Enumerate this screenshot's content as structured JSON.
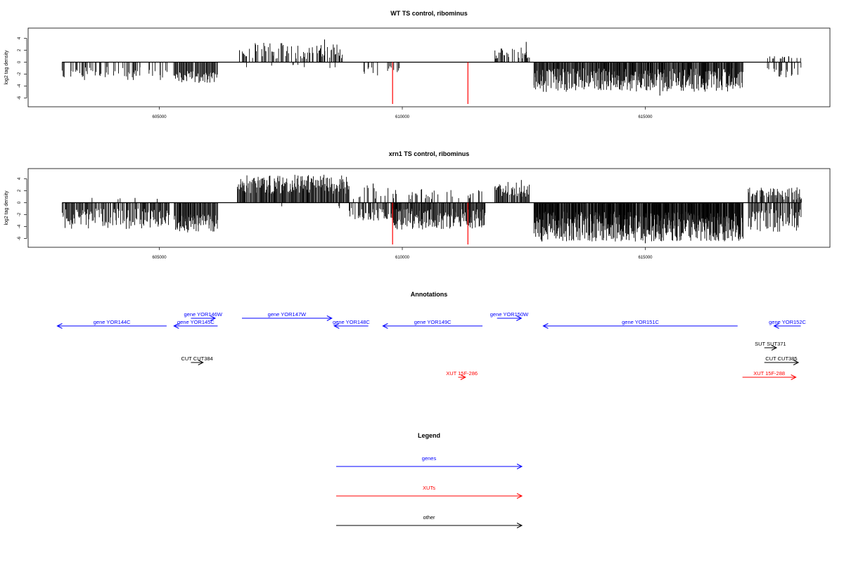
{
  "chart_data": [
    {
      "type": "bar",
      "title": "WT TS control, ribominus",
      "ylabel": "log2 tag density",
      "xlabel": "",
      "xlim": [
        602300,
        618800
      ],
      "ylim": [
        -7,
        5
      ],
      "yticks": [
        -6,
        -4,
        -2,
        0,
        2,
        4
      ],
      "xticks": [
        605000,
        610000,
        615000
      ],
      "xtick_labels": [
        "605000",
        "610000",
        "615000"
      ],
      "baseline": {
        "x": [
          603000,
          618200
        ],
        "y": 0
      },
      "bar_color": "#000000",
      "highlight_color": "#ff0000",
      "segments": [
        {
          "x0": 603000,
          "x1": 605200,
          "seed": 11,
          "pos_density": 0.0,
          "neg_density": 0.35,
          "pos_range": [
            0,
            0
          ],
          "neg_range": [
            0.8,
            3.0
          ]
        },
        {
          "x0": 605300,
          "x1": 606200,
          "seed": 12,
          "pos_density": 0.0,
          "neg_density": 0.9,
          "pos_range": [
            0,
            0
          ],
          "neg_range": [
            1.5,
            3.5
          ]
        },
        {
          "x0": 606700,
          "x1": 608800,
          "seed": 13,
          "pos_density": 0.55,
          "neg_density": 0.03,
          "pos_range": [
            0.5,
            3.3
          ],
          "neg_range": [
            0.3,
            1.0
          ]
        },
        {
          "x0": 609200,
          "x1": 609600,
          "seed": 14,
          "pos_density": 0.0,
          "neg_density": 0.3,
          "pos_range": [
            0,
            0
          ],
          "neg_range": [
            0.5,
            2.5
          ]
        },
        {
          "x0": 609700,
          "x1": 610000,
          "seed": 15,
          "pos_density": 0.0,
          "neg_density": 0.4,
          "pos_range": [
            0,
            0
          ],
          "neg_range": [
            0.5,
            2.0
          ]
        },
        {
          "x0": 611900,
          "x1": 612600,
          "seed": 16,
          "pos_density": 0.6,
          "neg_density": 0.0,
          "pos_range": [
            0.5,
            2.5
          ],
          "neg_range": [
            0,
            0
          ]
        },
        {
          "x0": 612700,
          "x1": 617000,
          "seed": 17,
          "pos_density": 0.0,
          "neg_density": 1.3,
          "pos_range": [
            0,
            0
          ],
          "neg_range": [
            1.0,
            5.0
          ]
        },
        {
          "x0": 617500,
          "x1": 618200,
          "seed": 18,
          "pos_density": 0.15,
          "neg_density": 0.35,
          "pos_range": [
            0.5,
            1.0
          ],
          "neg_range": [
            0.8,
            2.8
          ]
        }
      ],
      "spikes": [
        {
          "x": 608400,
          "y": 3.8
        },
        {
          "x": 612550,
          "y": 3.4
        },
        {
          "x": 606650,
          "y": 2.0
        },
        {
          "x": 615300,
          "y": -5.6
        },
        {
          "x": 617950,
          "y": 1.0
        }
      ],
      "highlights": [
        {
          "x": 609800,
          "y": -7.0
        },
        {
          "x": 611350,
          "y": -7.0
        }
      ]
    },
    {
      "type": "bar",
      "title": "xrn1 TS control, ribominus",
      "ylabel": "log2 tag density",
      "xlabel": "",
      "xlim": [
        602300,
        618800
      ],
      "ylim": [
        -7,
        5
      ],
      "yticks": [
        -6,
        -4,
        -2,
        0,
        2,
        4
      ],
      "xticks": [
        605000,
        610000,
        615000
      ],
      "xtick_labels": [
        "605000",
        "610000",
        "615000"
      ],
      "baseline": {
        "x": [
          603000,
          618200
        ],
        "y": 0
      },
      "bar_color": "#000000",
      "highlight_color": "#ff0000",
      "segments": [
        {
          "x0": 603000,
          "x1": 605200,
          "seed": 21,
          "pos_density": 0.02,
          "neg_density": 0.8,
          "pos_range": [
            0.5,
            1.0
          ],
          "neg_range": [
            1.0,
            4.5
          ]
        },
        {
          "x0": 605300,
          "x1": 606200,
          "seed": 22,
          "pos_density": 0.0,
          "neg_density": 1.3,
          "pos_range": [
            0,
            0
          ],
          "neg_range": [
            2.0,
            5.0
          ]
        },
        {
          "x0": 606600,
          "x1": 608900,
          "seed": 23,
          "pos_density": 1.1,
          "neg_density": 0.03,
          "pos_range": [
            1.5,
            4.7
          ],
          "neg_range": [
            0.3,
            1.0
          ]
        },
        {
          "x0": 608900,
          "x1": 609800,
          "seed": 24,
          "pos_density": 0.15,
          "neg_density": 0.7,
          "pos_range": [
            0.5,
            3.0
          ],
          "neg_range": [
            0.8,
            3.0
          ]
        },
        {
          "x0": 609800,
          "x1": 611700,
          "seed": 25,
          "pos_density": 0.25,
          "neg_density": 1.2,
          "pos_range": [
            0.5,
            2.3
          ],
          "neg_range": [
            1.0,
            4.5
          ]
        },
        {
          "x0": 611900,
          "x1": 612600,
          "seed": 26,
          "pos_density": 0.9,
          "neg_density": 0.0,
          "pos_range": [
            1.0,
            3.5
          ],
          "neg_range": [
            0,
            0
          ]
        },
        {
          "x0": 612700,
          "x1": 617000,
          "seed": 27,
          "pos_density": 0.0,
          "neg_density": 1.8,
          "pos_range": [
            0,
            0
          ],
          "neg_range": [
            1.5,
            6.5
          ]
        },
        {
          "x0": 617100,
          "x1": 618200,
          "seed": 28,
          "pos_density": 0.6,
          "neg_density": 0.7,
          "pos_range": [
            0.5,
            2.7
          ],
          "neg_range": [
            1.0,
            5.0
          ]
        }
      ],
      "spikes": [
        {
          "x": 604500,
          "y": 0.8
        },
        {
          "x": 609400,
          "y": 3.2
        },
        {
          "x": 611400,
          "y": 1.4
        },
        {
          "x": 612450,
          "y": 3.8
        },
        {
          "x": 615000,
          "y": -6.8
        }
      ],
      "highlights": [
        {
          "x": 609800,
          "y": -7.0
        },
        {
          "x": 611350,
          "y": -7.0
        }
      ]
    }
  ],
  "annotations": {
    "title": "Annotations",
    "coord_range": [
      602300,
      618800
    ],
    "items": [
      {
        "label": "gene YOR144C",
        "x0": 602900,
        "x1": 605150,
        "row": "low",
        "dir": "left",
        "color": "#0000ff"
      },
      {
        "label": "gene YOR145C",
        "x0": 605300,
        "x1": 606200,
        "row": "low",
        "dir": "left",
        "color": "#0000ff"
      },
      {
        "label": "gene YOR146W",
        "x0": 605650,
        "x1": 606150,
        "row": "high",
        "dir": "right",
        "color": "#0000ff"
      },
      {
        "label": "gene YOR147W",
        "x0": 606700,
        "x1": 608550,
        "row": "high",
        "dir": "right",
        "color": "#0000ff"
      },
      {
        "label": "gene YOR148C",
        "x0": 608600,
        "x1": 609300,
        "row": "low",
        "dir": "left",
        "color": "#0000ff"
      },
      {
        "label": "gene YOR149C",
        "x0": 609600,
        "x1": 611650,
        "row": "low",
        "dir": "left",
        "color": "#0000ff"
      },
      {
        "label": "gene YOR150W",
        "x0": 611950,
        "x1": 612450,
        "row": "high",
        "dir": "right",
        "color": "#0000ff"
      },
      {
        "label": "gene YOR151C",
        "x0": 612900,
        "x1": 616900,
        "row": "low",
        "dir": "left",
        "color": "#0000ff"
      },
      {
        "label": "gene YOR152C",
        "x0": 617650,
        "x1": 618200,
        "row": "low",
        "dir": "left",
        "color": "#0000ff"
      },
      {
        "label": "SUT SUT371",
        "x0": 617450,
        "x1": 617700,
        "row": "sut",
        "dir": "right",
        "color": "#000000"
      },
      {
        "label": "CUT CUT384",
        "x0": 605650,
        "x1": 605900,
        "row": "cut",
        "dir": "right",
        "color": "#000000"
      },
      {
        "label": "CUT CUT385",
        "x0": 617450,
        "x1": 618150,
        "row": "cut",
        "dir": "right",
        "color": "#000000"
      },
      {
        "label": "XUT 15F-286",
        "x0": 611150,
        "x1": 611300,
        "row": "xut",
        "dir": "right",
        "color": "#ff0000"
      },
      {
        "label": "XUT 15F-288",
        "x0": 617000,
        "x1": 618100,
        "row": "xut",
        "dir": "right",
        "color": "#ff0000"
      }
    ]
  },
  "legend": {
    "title": "Legend",
    "entries": [
      {
        "label": "genes",
        "color": "#0000ff"
      },
      {
        "label": "XUTs",
        "color": "#ff0000"
      },
      {
        "label": "other",
        "color": "#000000"
      }
    ]
  }
}
